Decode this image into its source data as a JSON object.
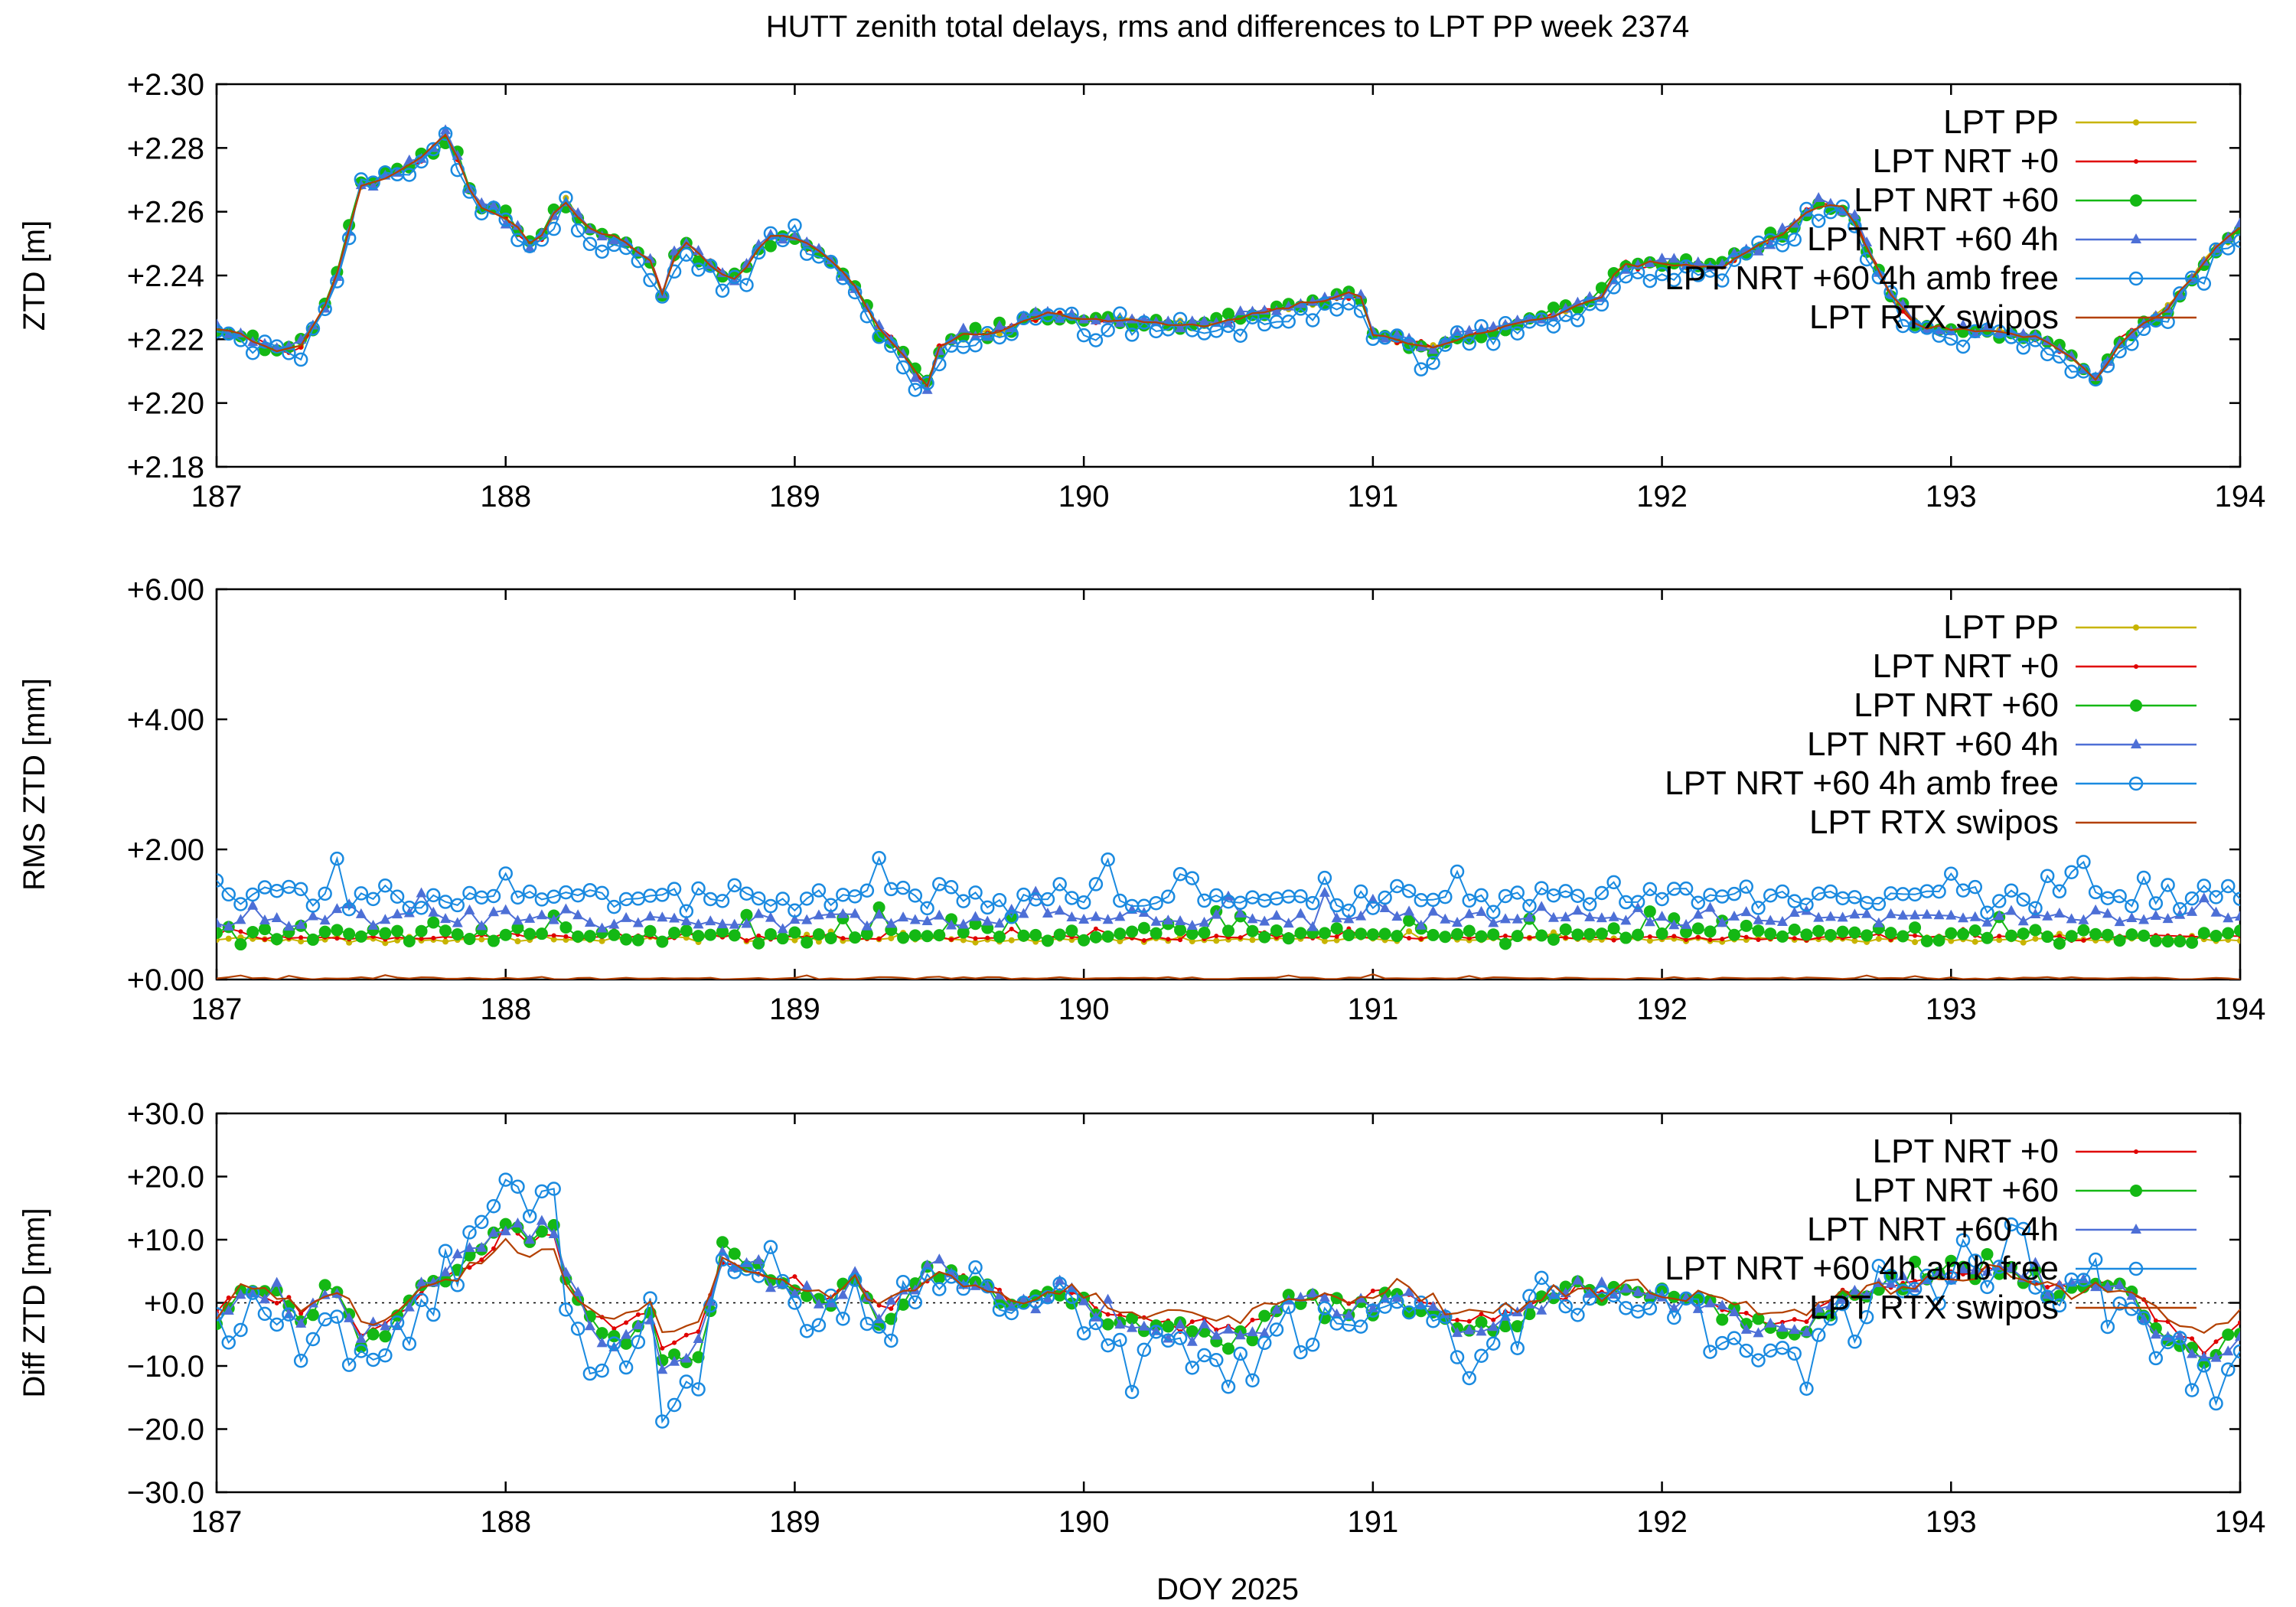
{
  "title": "HUTT zenith total delays, rms and differences to LPT PP week 2374",
  "xlabel": "DOY 2025",
  "colors": {
    "LPT PP": "#c8b400",
    "LPT NRT +0": "#e00000",
    "LPT NRT +60": "#14b814",
    "LPT NRT +60 4h": "#4d6fd6",
    "LPT NRT +60 4h amb free": "#1a8ae0",
    "LPT RTX swipos": "#b34000"
  },
  "chart_data": [
    {
      "type": "line",
      "panel": "ztd",
      "ylabel": "ZTD [m]",
      "xlim": [
        187,
        194
      ],
      "ylim": [
        2.18,
        2.3
      ],
      "xticks": [
        "187",
        "188",
        "189",
        "190",
        "191",
        "192",
        "193",
        "194"
      ],
      "yticks": [
        "+2.18",
        "+2.20",
        "+2.22",
        "+2.24",
        "+2.26",
        "+2.28",
        "+2.30"
      ],
      "legend": [
        "LPT PP",
        "LPT NRT +0",
        "LPT NRT +60",
        "LPT NRT +60 4h",
        "LPT NRT +60 4h amb free",
        "LPT RTX swipos"
      ],
      "legend_position": "top-right",
      "sample_interval_days": 0.0416667,
      "base_series": [
        [
          187.0,
          2.223
        ],
        [
          187.1,
          2.221
        ],
        [
          187.2,
          2.216
        ],
        [
          187.3,
          2.218
        ],
        [
          187.4,
          2.235
        ],
        [
          187.5,
          2.268
        ],
        [
          187.6,
          2.272
        ],
        [
          187.7,
          2.276
        ],
        [
          187.8,
          2.284
        ],
        [
          187.9,
          2.262
        ],
        [
          188.0,
          2.258
        ],
        [
          188.1,
          2.249
        ],
        [
          188.2,
          2.264
        ],
        [
          188.3,
          2.254
        ],
        [
          188.4,
          2.251
        ],
        [
          188.5,
          2.245
        ],
        [
          188.55,
          2.232
        ],
        [
          188.6,
          2.252
        ],
        [
          188.7,
          2.244
        ],
        [
          188.8,
          2.238
        ],
        [
          188.9,
          2.252
        ],
        [
          189.0,
          2.252
        ],
        [
          189.1,
          2.247
        ],
        [
          189.2,
          2.238
        ],
        [
          189.3,
          2.222
        ],
        [
          189.4,
          2.213
        ],
        [
          189.45,
          2.203
        ],
        [
          189.5,
          2.217
        ],
        [
          189.6,
          2.222
        ],
        [
          189.7,
          2.222
        ],
        [
          189.8,
          2.226
        ],
        [
          189.9,
          2.228
        ],
        [
          190.0,
          2.226
        ],
        [
          190.2,
          2.226
        ],
        [
          190.4,
          2.224
        ],
        [
          190.6,
          2.228
        ],
        [
          190.8,
          2.232
        ],
        [
          190.95,
          2.235
        ],
        [
          191.0,
          2.222
        ],
        [
          191.2,
          2.217
        ],
        [
          191.4,
          2.223
        ],
        [
          191.6,
          2.227
        ],
        [
          191.8,
          2.234
        ],
        [
          191.85,
          2.243
        ],
        [
          192.0,
          2.244
        ],
        [
          192.2,
          2.243
        ],
        [
          192.4,
          2.252
        ],
        [
          192.55,
          2.263
        ],
        [
          192.65,
          2.26
        ],
        [
          192.8,
          2.232
        ],
        [
          192.9,
          2.224
        ],
        [
          193.0,
          2.223
        ],
        [
          193.2,
          2.222
        ],
        [
          193.35,
          2.219
        ],
        [
          193.5,
          2.207
        ],
        [
          193.6,
          2.221
        ],
        [
          193.75,
          2.23
        ],
        [
          193.9,
          2.247
        ],
        [
          194.0,
          2.255
        ]
      ],
      "series": [
        {
          "name": "LPT PP",
          "offset_m": 0.0,
          "noise_m": 0.001
        },
        {
          "name": "LPT NRT +0",
          "offset_m": 0.0,
          "noise_m": 0.0014
        },
        {
          "name": "LPT NRT +60",
          "offset_m": 0.0,
          "noise_m": 0.0022
        },
        {
          "name": "LPT NRT +60 4h",
          "offset_m": 0.0,
          "noise_m": 0.002
        },
        {
          "name": "LPT NRT +60 4h amb free",
          "offset_m": -0.002,
          "noise_m": 0.0045
        },
        {
          "name": "LPT RTX swipos",
          "offset_m": 0.0,
          "noise_m": 0.0008
        }
      ]
    },
    {
      "type": "line",
      "panel": "rms",
      "ylabel": "RMS ZTD [mm]",
      "xlim": [
        187,
        194
      ],
      "ylim": [
        0,
        6
      ],
      "xticks": [
        "187",
        "188",
        "189",
        "190",
        "191",
        "192",
        "193",
        "194"
      ],
      "yticks": [
        "+0.00",
        "+2.00",
        "+4.00",
        "+6.00"
      ],
      "legend": [
        "LPT PP",
        "LPT NRT +0",
        "LPT NRT +60",
        "LPT NRT +60 4h",
        "LPT NRT +60 4h amb free",
        "LPT RTX swipos"
      ],
      "legend_position": "top-right",
      "series": [
        {
          "name": "LPT PP",
          "mean_mm": 0.62,
          "spread_mm": 0.05
        },
        {
          "name": "LPT NRT +0",
          "mean_mm": 0.65,
          "spread_mm": 0.05
        },
        {
          "name": "LPT NRT +60",
          "mean_mm": 0.7,
          "spread_mm": 0.12
        },
        {
          "name": "LPT NRT +60 4h",
          "mean_mm": 0.95,
          "spread_mm": 0.15
        },
        {
          "name": "LPT NRT +60 4h amb free",
          "mean_mm": 1.25,
          "spread_mm": 0.22
        },
        {
          "name": "LPT RTX swipos",
          "mean_mm": 0.02,
          "spread_mm": 0.02
        }
      ]
    },
    {
      "type": "line",
      "panel": "diff",
      "ylabel": "Diff ZTD [mm]",
      "xlim": [
        187,
        194
      ],
      "ylim": [
        -30,
        30
      ],
      "xticks": [
        "187",
        "188",
        "189",
        "190",
        "191",
        "192",
        "193",
        "194"
      ],
      "yticks": [
        "−30.0",
        "−20.0",
        "−10.0",
        "+0.0",
        "+10.0",
        "+20.0",
        "+30.0"
      ],
      "legend": [
        "LPT NRT +0",
        "LPT NRT +60",
        "LPT NRT +60 4h",
        "LPT NRT +60 4h amb free",
        "LPT RTX swipos"
      ],
      "legend_position": "top-right",
      "zero_line": true,
      "base_series": [
        [
          187.0,
          -3
        ],
        [
          187.1,
          2
        ],
        [
          187.2,
          1
        ],
        [
          187.3,
          -3
        ],
        [
          187.4,
          3
        ],
        [
          187.5,
          -6
        ],
        [
          187.6,
          -5
        ],
        [
          187.7,
          2
        ],
        [
          187.8,
          5
        ],
        [
          187.9,
          8
        ],
        [
          188.0,
          14
        ],
        [
          188.1,
          10
        ],
        [
          188.15,
          15
        ],
        [
          188.2,
          5
        ],
        [
          188.3,
          -4
        ],
        [
          188.4,
          -6
        ],
        [
          188.5,
          -2
        ],
        [
          188.55,
          -12
        ],
        [
          188.6,
          -6
        ],
        [
          188.65,
          -10
        ],
        [
          188.75,
          8
        ],
        [
          188.9,
          5
        ],
        [
          189.0,
          3
        ],
        [
          189.1,
          0
        ],
        [
          189.2,
          4
        ],
        [
          189.3,
          -3
        ],
        [
          189.4,
          2
        ],
        [
          189.5,
          6
        ],
        [
          189.6,
          4
        ],
        [
          189.7,
          1
        ],
        [
          189.8,
          0
        ],
        [
          189.9,
          2
        ],
        [
          190.0,
          0
        ],
        [
          190.2,
          -4
        ],
        [
          190.4,
          -5
        ],
        [
          190.5,
          -5
        ],
        [
          190.6,
          -5
        ],
        [
          190.7,
          0
        ],
        [
          190.9,
          0
        ],
        [
          191.0,
          0
        ],
        [
          191.1,
          2
        ],
        [
          191.3,
          -5
        ],
        [
          191.5,
          -2
        ],
        [
          191.7,
          2
        ],
        [
          191.9,
          2
        ],
        [
          192.0,
          1
        ],
        [
          192.2,
          -1
        ],
        [
          192.4,
          -5
        ],
        [
          192.5,
          -4
        ],
        [
          192.6,
          0
        ],
        [
          192.8,
          3
        ],
        [
          193.0,
          5
        ],
        [
          193.1,
          5
        ],
        [
          193.2,
          6
        ],
        [
          193.4,
          2
        ],
        [
          193.6,
          3
        ],
        [
          193.7,
          -3
        ],
        [
          193.8,
          -7
        ],
        [
          193.9,
          -10
        ],
        [
          194.0,
          -5
        ]
      ],
      "series": [
        {
          "name": "LPT NRT +0",
          "scale": 0.8,
          "offset_mm": 0.5,
          "noise_mm": 1.2
        },
        {
          "name": "LPT NRT +60",
          "scale": 1.0,
          "offset_mm": 0.0,
          "noise_mm": 2.0
        },
        {
          "name": "LPT NRT +60 4h",
          "scale": 1.0,
          "offset_mm": 0.0,
          "noise_mm": 2.0
        },
        {
          "name": "LPT NRT +60 4h amb free",
          "scale": 1.4,
          "offset_mm": -2.0,
          "noise_mm": 6.0
        },
        {
          "name": "LPT RTX swipos",
          "scale": 0.6,
          "offset_mm": 1.0,
          "noise_mm": 1.5
        }
      ]
    }
  ]
}
